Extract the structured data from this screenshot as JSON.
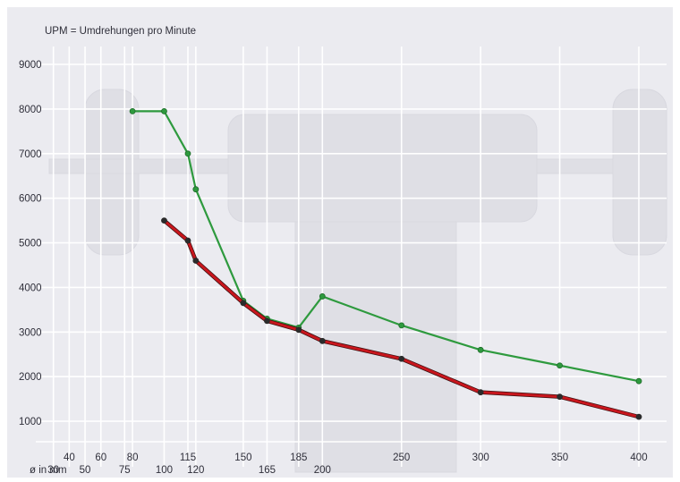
{
  "chart_data": {
    "type": "line",
    "note": "UPM = Umdrehungen pro Minute",
    "xlabel": "ø in mm",
    "ylim": [
      0,
      9000
    ],
    "yticks": [
      1000,
      2000,
      3000,
      4000,
      5000,
      6000,
      7000,
      8000,
      9000
    ],
    "xlim": [
      20,
      400
    ],
    "x_ticks_upper": [
      40,
      60,
      80,
      115,
      150,
      185,
      250,
      300,
      350,
      400
    ],
    "x_ticks_lower": [
      30,
      50,
      75,
      100,
      120,
      165,
      200
    ],
    "x_gridlines": [
      30,
      40,
      50,
      60,
      75,
      80,
      100,
      115,
      120,
      150,
      165,
      185,
      200,
      250,
      300,
      350,
      400
    ],
    "grid": true,
    "series": [
      {
        "color": "#2e9a3e",
        "points": [
          [
            80,
            7950
          ],
          [
            100,
            7950
          ],
          [
            115,
            7000
          ],
          [
            120,
            6200
          ],
          [
            150,
            3700
          ],
          [
            165,
            3300
          ],
          [
            185,
            3100
          ],
          [
            200,
            3800
          ],
          [
            250,
            3150
          ],
          [
            300,
            2600
          ],
          [
            350,
            2250
          ],
          [
            400,
            1900
          ]
        ]
      },
      {
        "color": "#c8161d",
        "points": [
          [
            100,
            5500
          ],
          [
            115,
            5050
          ],
          [
            120,
            4600
          ],
          [
            150,
            3650
          ],
          [
            165,
            3250
          ],
          [
            185,
            3050
          ],
          [
            200,
            2800
          ],
          [
            250,
            2400
          ],
          [
            300,
            1650
          ],
          [
            350,
            1550
          ],
          [
            400,
            1100
          ]
        ]
      }
    ]
  },
  "colors": {
    "background": "#ebebf0",
    "grid": "#ffffff",
    "marker": "#2b2b2b",
    "text": "#2f2f3a"
  }
}
